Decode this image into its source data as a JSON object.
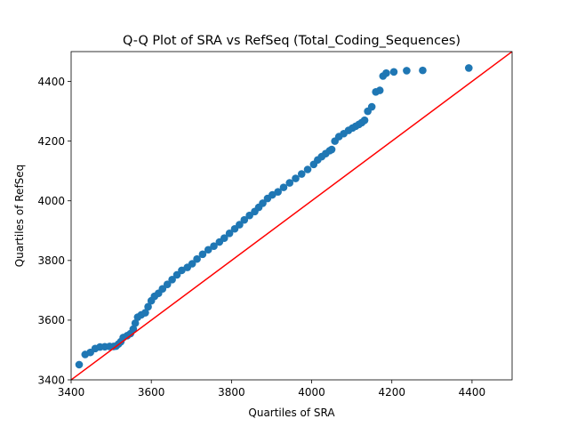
{
  "chart_data": {
    "type": "scatter",
    "title": "Q-Q Plot of SRA vs RefSeq (Total_Coding_Sequences)",
    "xlabel": "Quartiles of SRA",
    "ylabel": "Quartiles of RefSeq",
    "xlim": [
      3400,
      4500
    ],
    "ylim": [
      3400,
      4500
    ],
    "xticks": [
      3400,
      3600,
      3800,
      4000,
      4200,
      4400
    ],
    "yticks": [
      3400,
      3600,
      3800,
      4000,
      4200,
      4400
    ],
    "grid": false,
    "legend": "none",
    "point_color": "#1f77b4",
    "reference_line": {
      "from": [
        3400,
        3400
      ],
      "to": [
        4500,
        4500
      ],
      "color": "#ff0000"
    },
    "points": {
      "x": [
        3420,
        3435,
        3448,
        3460,
        3472,
        3484,
        3496,
        3506,
        3512,
        3518,
        3524,
        3530,
        3540,
        3548,
        3555,
        3560,
        3566,
        3575,
        3585,
        3592,
        3600,
        3608,
        3618,
        3628,
        3640,
        3652,
        3664,
        3676,
        3690,
        3702,
        3714,
        3728,
        3742,
        3756,
        3770,
        3782,
        3795,
        3808,
        3820,
        3832,
        3845,
        3858,
        3868,
        3878,
        3890,
        3902,
        3916,
        3930,
        3945,
        3960,
        3975,
        3990,
        4005,
        4015,
        4025,
        4035,
        4045,
        4050,
        4058,
        4068,
        4080,
        4092,
        4102,
        4110,
        4118,
        4125,
        4132,
        4140,
        4150,
        4160,
        4170,
        4178,
        4186,
        4205,
        4237,
        4277,
        4392
      ],
      "y": [
        3451,
        3485,
        3492,
        3505,
        3510,
        3511,
        3512,
        3512,
        3513,
        3520,
        3528,
        3542,
        3548,
        3555,
        3570,
        3590,
        3610,
        3618,
        3625,
        3645,
        3665,
        3680,
        3690,
        3705,
        3720,
        3736,
        3752,
        3767,
        3777,
        3789,
        3805,
        3821,
        3836,
        3848,
        3862,
        3875,
        3891,
        3906,
        3920,
        3936,
        3951,
        3964,
        3978,
        3992,
        4008,
        4020,
        4030,
        4045,
        4060,
        4075,
        4090,
        4105,
        4122,
        4137,
        4148,
        4158,
        4168,
        4172,
        4200,
        4215,
        4225,
        4236,
        4244,
        4250,
        4256,
        4262,
        4270,
        4300,
        4315,
        4365,
        4370,
        4418,
        4428,
        4432,
        4436,
        4437,
        4445
      ]
    }
  }
}
